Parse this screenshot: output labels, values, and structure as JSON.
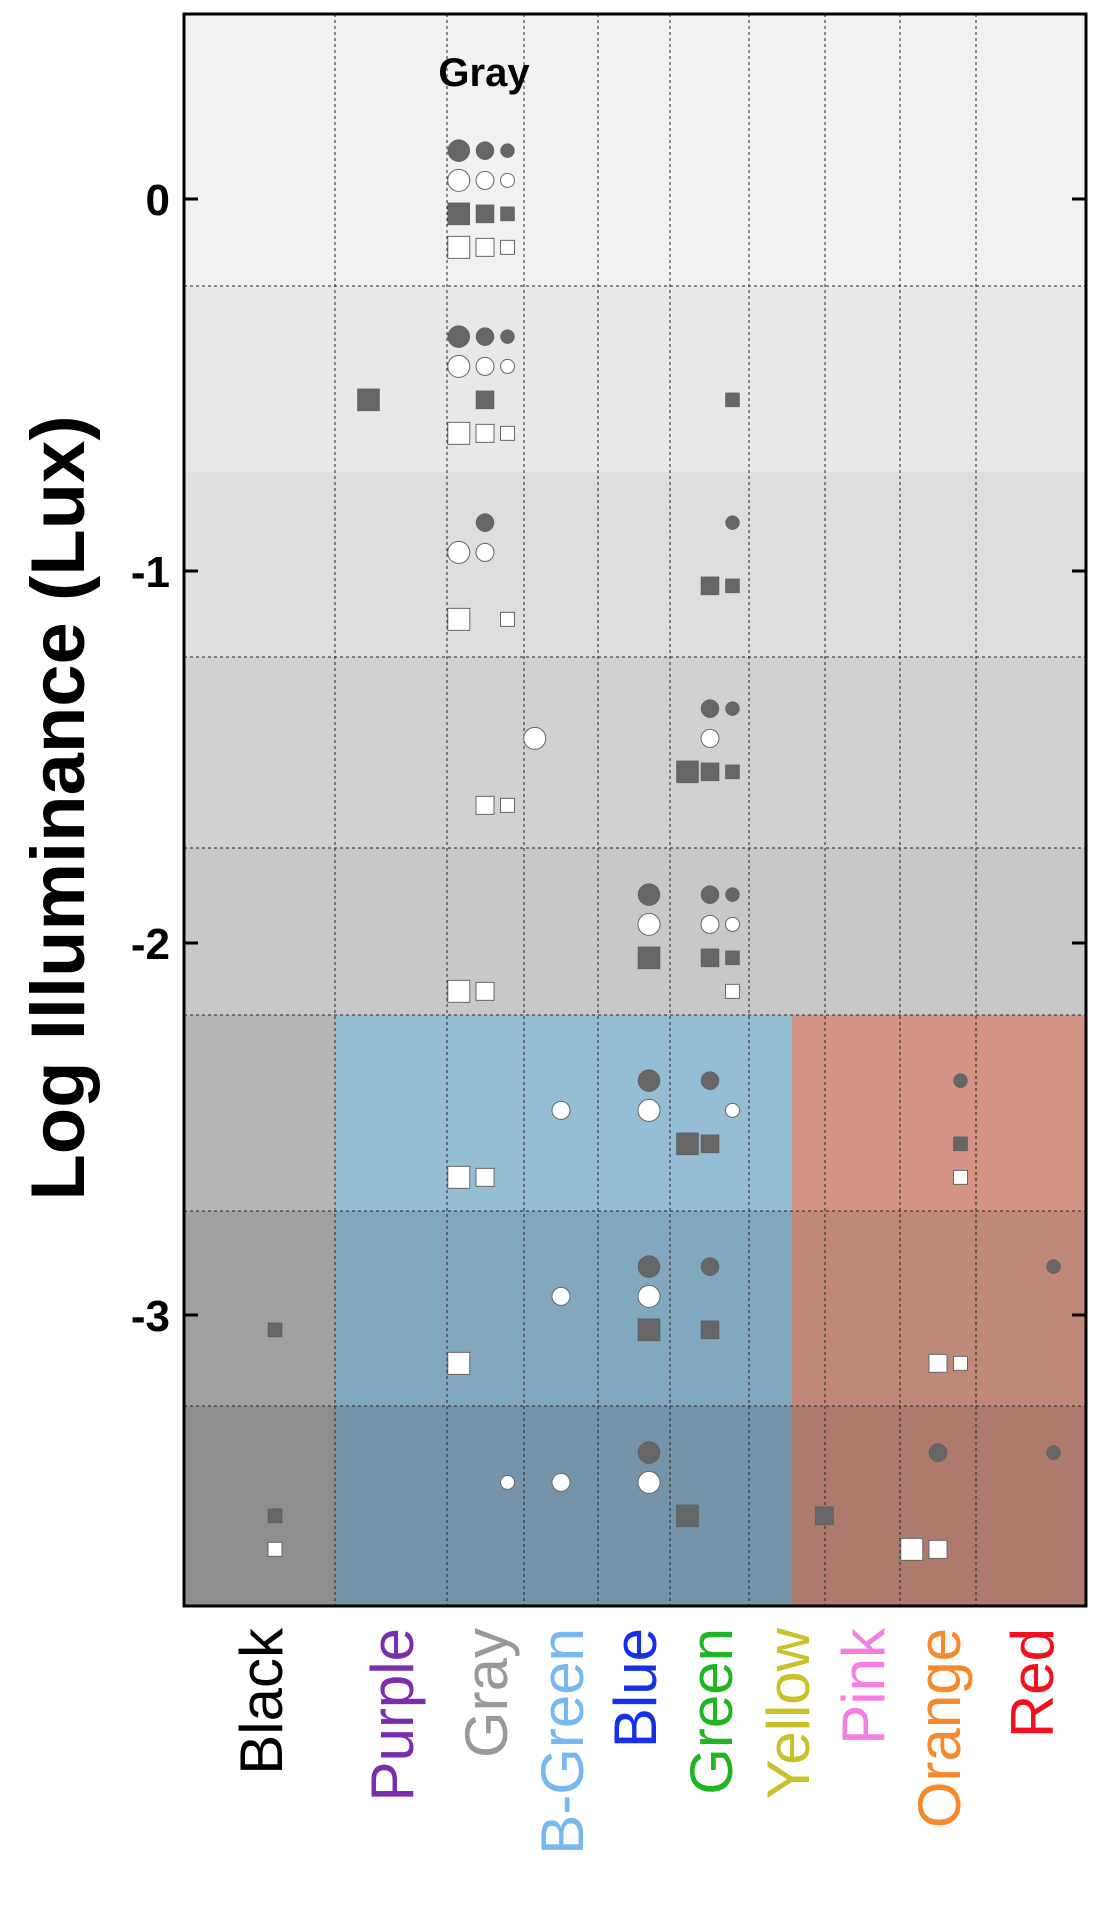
{
  "chart_data": {
    "type": "scatter",
    "title": "",
    "ylabel": "Log Illuminance (Lux)",
    "xlabel": "",
    "ylim": [
      -3.8,
      0.5
    ],
    "yticks": [
      "0",
      "-1",
      "-2",
      "-3"
    ],
    "ytick_values": [
      0,
      -1,
      -2,
      -3
    ],
    "annotation": "Gray",
    "categories": [
      {
        "label": "Black",
        "color": "#000000"
      },
      {
        "label": "Purple",
        "color": "#7B2DB0"
      },
      {
        "label": "Gray",
        "color": "#999999"
      },
      {
        "label": "B-Green",
        "color": "#78B8F0"
      },
      {
        "label": "Blue",
        "color": "#1530E8"
      },
      {
        "label": "Green",
        "color": "#22B522"
      },
      {
        "label": "Yellow",
        "color": "#C9C12A"
      },
      {
        "label": "Pink",
        "color": "#F47FE0"
      },
      {
        "label": "Orange",
        "color": "#F5892B"
      },
      {
        "label": "Red",
        "color": "#F2101E"
      }
    ],
    "markers": {
      "filled_circle": "#666666",
      "open_circle": "#ffffff",
      "filled_square": "#666666",
      "open_square": "#ffffff"
    },
    "points": [
      {
        "cat": "Gray",
        "o": -0.35,
        "y": 0.13,
        "shape": "circle",
        "filled": true,
        "size": "L"
      },
      {
        "cat": "Gray",
        "o": 0.0,
        "y": 0.13,
        "shape": "circle",
        "filled": true,
        "size": "M"
      },
      {
        "cat": "Gray",
        "o": 0.3,
        "y": 0.13,
        "shape": "circle",
        "filled": true,
        "size": "S"
      },
      {
        "cat": "Gray",
        "o": -0.35,
        "y": 0.05,
        "shape": "circle",
        "filled": false,
        "size": "L"
      },
      {
        "cat": "Gray",
        "o": 0.0,
        "y": 0.05,
        "shape": "circle",
        "filled": false,
        "size": "M"
      },
      {
        "cat": "Gray",
        "o": 0.3,
        "y": 0.05,
        "shape": "circle",
        "filled": false,
        "size": "S"
      },
      {
        "cat": "Gray",
        "o": -0.35,
        "y": -0.04,
        "shape": "square",
        "filled": true,
        "size": "L"
      },
      {
        "cat": "Gray",
        "o": 0.0,
        "y": -0.04,
        "shape": "square",
        "filled": true,
        "size": "M"
      },
      {
        "cat": "Gray",
        "o": 0.3,
        "y": -0.04,
        "shape": "square",
        "filled": true,
        "size": "S"
      },
      {
        "cat": "Gray",
        "o": -0.35,
        "y": -0.13,
        "shape": "square",
        "filled": false,
        "size": "L"
      },
      {
        "cat": "Gray",
        "o": 0.0,
        "y": -0.13,
        "shape": "square",
        "filled": false,
        "size": "M"
      },
      {
        "cat": "Gray",
        "o": 0.3,
        "y": -0.13,
        "shape": "square",
        "filled": false,
        "size": "S"
      },
      {
        "cat": "Gray",
        "o": -0.35,
        "y": -0.37,
        "shape": "circle",
        "filled": true,
        "size": "L"
      },
      {
        "cat": "Gray",
        "o": 0.0,
        "y": -0.37,
        "shape": "circle",
        "filled": true,
        "size": "M"
      },
      {
        "cat": "Gray",
        "o": 0.3,
        "y": -0.37,
        "shape": "circle",
        "filled": true,
        "size": "S"
      },
      {
        "cat": "Gray",
        "o": -0.35,
        "y": -0.45,
        "shape": "circle",
        "filled": false,
        "size": "L"
      },
      {
        "cat": "Gray",
        "o": 0.0,
        "y": -0.45,
        "shape": "circle",
        "filled": false,
        "size": "M"
      },
      {
        "cat": "Gray",
        "o": 0.3,
        "y": -0.45,
        "shape": "circle",
        "filled": false,
        "size": "S"
      },
      {
        "cat": "Gray",
        "o": 0.0,
        "y": -0.54,
        "shape": "square",
        "filled": true,
        "size": "M"
      },
      {
        "cat": "Gray",
        "o": -0.35,
        "y": -0.63,
        "shape": "square",
        "filled": false,
        "size": "L"
      },
      {
        "cat": "Gray",
        "o": 0.0,
        "y": -0.63,
        "shape": "square",
        "filled": false,
        "size": "M"
      },
      {
        "cat": "Gray",
        "o": 0.3,
        "y": -0.63,
        "shape": "square",
        "filled": false,
        "size": "S"
      },
      {
        "cat": "Purple",
        "o": -0.3,
        "y": -0.54,
        "shape": "square",
        "filled": true,
        "size": "L"
      },
      {
        "cat": "Green",
        "o": 0.3,
        "y": -0.54,
        "shape": "square",
        "filled": true,
        "size": "S"
      },
      {
        "cat": "Gray",
        "o": 0.0,
        "y": -0.87,
        "shape": "circle",
        "filled": true,
        "size": "M"
      },
      {
        "cat": "Gray",
        "o": -0.35,
        "y": -0.95,
        "shape": "circle",
        "filled": false,
        "size": "L"
      },
      {
        "cat": "Gray",
        "o": 0.0,
        "y": -0.95,
        "shape": "circle",
        "filled": false,
        "size": "M"
      },
      {
        "cat": "Gray",
        "o": -0.35,
        "y": -1.13,
        "shape": "square",
        "filled": false,
        "size": "L"
      },
      {
        "cat": "Gray",
        "o": 0.3,
        "y": -1.13,
        "shape": "square",
        "filled": false,
        "size": "S"
      },
      {
        "cat": "Green",
        "o": 0.3,
        "y": -0.87,
        "shape": "circle",
        "filled": true,
        "size": "S"
      },
      {
        "cat": "Green",
        "o": 0.0,
        "y": -1.04,
        "shape": "square",
        "filled": true,
        "size": "M"
      },
      {
        "cat": "Green",
        "o": 0.3,
        "y": -1.04,
        "shape": "square",
        "filled": true,
        "size": "S"
      },
      {
        "cat": "B-Green",
        "o": -0.35,
        "y": -1.45,
        "shape": "circle",
        "filled": false,
        "size": "L"
      },
      {
        "cat": "Gray",
        "o": 0.0,
        "y": -1.63,
        "shape": "square",
        "filled": false,
        "size": "M"
      },
      {
        "cat": "Gray",
        "o": 0.3,
        "y": -1.63,
        "shape": "square",
        "filled": false,
        "size": "S"
      },
      {
        "cat": "Green",
        "o": 0.0,
        "y": -1.37,
        "shape": "circle",
        "filled": true,
        "size": "M"
      },
      {
        "cat": "Green",
        "o": 0.3,
        "y": -1.37,
        "shape": "circle",
        "filled": true,
        "size": "S"
      },
      {
        "cat": "Green",
        "o": 0.0,
        "y": -1.45,
        "shape": "circle",
        "filled": false,
        "size": "M"
      },
      {
        "cat": "Green",
        "o": -0.3,
        "y": -1.54,
        "shape": "square",
        "filled": true,
        "size": "L"
      },
      {
        "cat": "Green",
        "o": 0.0,
        "y": -1.54,
        "shape": "square",
        "filled": true,
        "size": "M"
      },
      {
        "cat": "Green",
        "o": 0.3,
        "y": -1.54,
        "shape": "square",
        "filled": true,
        "size": "S"
      },
      {
        "cat": "Blue",
        "o": 0.2,
        "y": -1.87,
        "shape": "circle",
        "filled": true,
        "size": "L"
      },
      {
        "cat": "Blue",
        "o": 0.2,
        "y": -1.95,
        "shape": "circle",
        "filled": false,
        "size": "L"
      },
      {
        "cat": "Blue",
        "o": 0.2,
        "y": -2.04,
        "shape": "square",
        "filled": true,
        "size": "L"
      },
      {
        "cat": "Gray",
        "o": -0.35,
        "y": -2.13,
        "shape": "square",
        "filled": false,
        "size": "L"
      },
      {
        "cat": "Gray",
        "o": 0.0,
        "y": -2.13,
        "shape": "square",
        "filled": false,
        "size": "M"
      },
      {
        "cat": "Green",
        "o": 0.0,
        "y": -1.87,
        "shape": "circle",
        "filled": true,
        "size": "M"
      },
      {
        "cat": "Green",
        "o": 0.3,
        "y": -1.87,
        "shape": "circle",
        "filled": true,
        "size": "S"
      },
      {
        "cat": "Green",
        "o": 0.0,
        "y": -1.95,
        "shape": "circle",
        "filled": false,
        "size": "M"
      },
      {
        "cat": "Green",
        "o": 0.3,
        "y": -1.95,
        "shape": "circle",
        "filled": false,
        "size": "S"
      },
      {
        "cat": "Green",
        "o": 0.0,
        "y": -2.04,
        "shape": "square",
        "filled": true,
        "size": "M"
      },
      {
        "cat": "Green",
        "o": 0.3,
        "y": -2.04,
        "shape": "square",
        "filled": true,
        "size": "S"
      },
      {
        "cat": "Green",
        "o": 0.3,
        "y": -2.13,
        "shape": "square",
        "filled": false,
        "size": "S"
      },
      {
        "cat": "Blue",
        "o": 0.2,
        "y": -2.37,
        "shape": "circle",
        "filled": true,
        "size": "L"
      },
      {
        "cat": "Blue",
        "o": 0.2,
        "y": -2.45,
        "shape": "circle",
        "filled": false,
        "size": "L"
      },
      {
        "cat": "B-Green",
        "o": 0.0,
        "y": -2.45,
        "shape": "circle",
        "filled": false,
        "size": "M"
      },
      {
        "cat": "Gray",
        "o": -0.35,
        "y": -2.63,
        "shape": "square",
        "filled": false,
        "size": "L"
      },
      {
        "cat": "Gray",
        "o": 0.0,
        "y": -2.63,
        "shape": "square",
        "filled": false,
        "size": "M"
      },
      {
        "cat": "Green",
        "o": 0.0,
        "y": -2.37,
        "shape": "circle",
        "filled": true,
        "size": "M"
      },
      {
        "cat": "Green",
        "o": 0.3,
        "y": -2.45,
        "shape": "circle",
        "filled": false,
        "size": "S"
      },
      {
        "cat": "Green",
        "o": -0.3,
        "y": -2.54,
        "shape": "square",
        "filled": true,
        "size": "L"
      },
      {
        "cat": "Green",
        "o": 0.0,
        "y": -2.54,
        "shape": "square",
        "filled": true,
        "size": "M"
      },
      {
        "cat": "Orange",
        "o": 0.3,
        "y": -2.37,
        "shape": "circle",
        "filled": true,
        "size": "S"
      },
      {
        "cat": "Orange",
        "o": 0.3,
        "y": -2.54,
        "shape": "square",
        "filled": true,
        "size": "S"
      },
      {
        "cat": "Orange",
        "o": 0.3,
        "y": -2.63,
        "shape": "square",
        "filled": false,
        "size": "S"
      },
      {
        "cat": "Black",
        "o": 0.2,
        "y": -3.04,
        "shape": "square",
        "filled": true,
        "size": "S"
      },
      {
        "cat": "B-Green",
        "o": 0.0,
        "y": -2.95,
        "shape": "circle",
        "filled": false,
        "size": "M"
      },
      {
        "cat": "Blue",
        "o": 0.2,
        "y": -2.87,
        "shape": "circle",
        "filled": true,
        "size": "L"
      },
      {
        "cat": "Blue",
        "o": 0.2,
        "y": -2.95,
        "shape": "circle",
        "filled": false,
        "size": "L"
      },
      {
        "cat": "Blue",
        "o": 0.2,
        "y": -3.04,
        "shape": "square",
        "filled": true,
        "size": "L"
      },
      {
        "cat": "Gray",
        "o": -0.35,
        "y": -3.13,
        "shape": "square",
        "filled": false,
        "size": "L"
      },
      {
        "cat": "Green",
        "o": 0.0,
        "y": -2.87,
        "shape": "circle",
        "filled": true,
        "size": "M"
      },
      {
        "cat": "Green",
        "o": 0.0,
        "y": -3.04,
        "shape": "square",
        "filled": true,
        "size": "M"
      },
      {
        "cat": "Orange",
        "o": 0.0,
        "y": -3.13,
        "shape": "square",
        "filled": false,
        "size": "M"
      },
      {
        "cat": "Orange",
        "o": 0.3,
        "y": -3.13,
        "shape": "square",
        "filled": false,
        "size": "S"
      },
      {
        "cat": "Red",
        "o": 0.3,
        "y": -2.87,
        "shape": "circle",
        "filled": true,
        "size": "S"
      },
      {
        "cat": "Black",
        "o": 0.2,
        "y": -3.54,
        "shape": "square",
        "filled": true,
        "size": "S"
      },
      {
        "cat": "Black",
        "o": 0.2,
        "y": -3.63,
        "shape": "square",
        "filled": false,
        "size": "S"
      },
      {
        "cat": "Gray",
        "o": 0.3,
        "y": -3.45,
        "shape": "circle",
        "filled": false,
        "size": "S"
      },
      {
        "cat": "B-Green",
        "o": 0.0,
        "y": -3.45,
        "shape": "circle",
        "filled": false,
        "size": "M"
      },
      {
        "cat": "Blue",
        "o": 0.2,
        "y": -3.37,
        "shape": "circle",
        "filled": true,
        "size": "L"
      },
      {
        "cat": "Blue",
        "o": 0.2,
        "y": -3.45,
        "shape": "circle",
        "filled": false,
        "size": "L"
      },
      {
        "cat": "Green",
        "o": -0.3,
        "y": -3.54,
        "shape": "square",
        "filled": true,
        "size": "L"
      },
      {
        "cat": "Yellow",
        "o": 0.5,
        "y": -3.54,
        "shape": "square",
        "filled": true,
        "size": "M"
      },
      {
        "cat": "Orange",
        "o": 0.0,
        "y": -3.37,
        "shape": "circle",
        "filled": true,
        "size": "M"
      },
      {
        "cat": "Orange",
        "o": -0.35,
        "y": -3.63,
        "shape": "square",
        "filled": false,
        "size": "L"
      },
      {
        "cat": "Orange",
        "o": 0.0,
        "y": -3.63,
        "shape": "square",
        "filled": false,
        "size": "M"
      },
      {
        "cat": "Red",
        "o": 0.3,
        "y": -3.37,
        "shape": "circle",
        "filled": true,
        "size": "S"
      }
    ]
  }
}
